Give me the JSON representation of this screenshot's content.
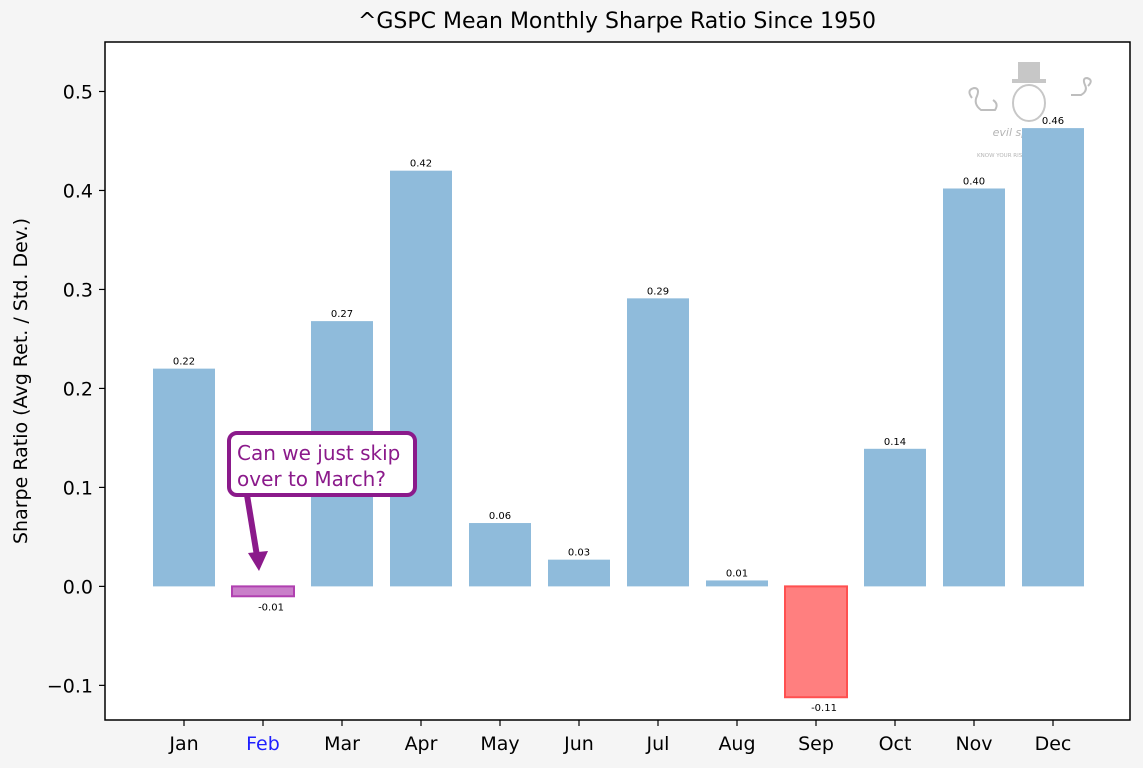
{
  "chart_data": {
    "type": "bar",
    "title": "^GSPC Mean Monthly Sharpe Ratio Since 1950",
    "xlabel": "",
    "ylabel": "Sharpe Ratio (Avg Ret. / Std. Dev.)",
    "ylim": [
      -0.135,
      0.55
    ],
    "yticks": [
      -0.1,
      0.0,
      0.1,
      0.2,
      0.3,
      0.4,
      0.5
    ],
    "ytick_labels": [
      "−0.1",
      "0.0",
      "0.1",
      "0.2",
      "0.3",
      "0.4",
      "0.5"
    ],
    "grid": false,
    "categories": [
      "Jan",
      "Feb",
      "Mar",
      "Apr",
      "May",
      "Jun",
      "Jul",
      "Aug",
      "Sep",
      "Oct",
      "Nov",
      "Dec"
    ],
    "values": [
      0.22,
      -0.01,
      0.268,
      0.42,
      0.064,
      0.027,
      0.291,
      0.006,
      -0.112,
      0.139,
      0.402,
      0.463
    ],
    "value_labels": [
      "0.22",
      "-0.01",
      "0.27",
      "0.42",
      "0.06",
      "0.03",
      "0.29",
      "0.01",
      "-0.11",
      "0.14",
      "0.40",
      "0.46"
    ],
    "bar_colors": [
      "#8fbbdb",
      "#c97fc9",
      "#8fbbdb",
      "#8fbbdb",
      "#8fbbdb",
      "#8fbbdb",
      "#8fbbdb",
      "#8fbbdb",
      "#ff7f7f",
      "#8fbbdb",
      "#8fbbdb",
      "#8fbbdb"
    ],
    "bar_edge_colors": [
      "none",
      "#b040b0",
      "none",
      "none",
      "none",
      "none",
      "none",
      "none",
      "#ff5050",
      "none",
      "none",
      "none"
    ],
    "highlighted_tick_colors": {
      "Feb": "#1f1fff"
    },
    "annotation": {
      "text_lines": [
        "Can we just skip",
        "over to March?"
      ],
      "color": "#8b1a8b",
      "points_to": "Feb"
    },
    "watermark": {
      "name": "evil speculator",
      "tagline": "KNOW YOUR RISK BEFORE YOU TRADE"
    }
  }
}
